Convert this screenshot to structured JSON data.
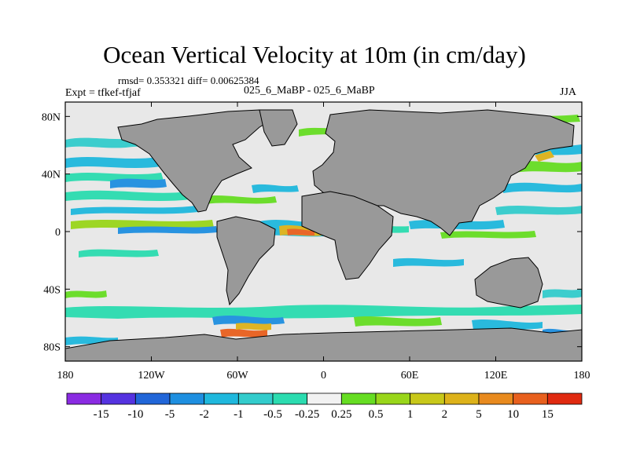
{
  "plot": {
    "title": "Ocean Vertical Velocity at 10m (in cm/day)",
    "stats": "rmsd= 0.353321 diff= 0.00625384",
    "experiment": "Expt = tfkef-tfjaf",
    "runs": "025_6_MaBP - 025_6_MaBP",
    "season": "JJA"
  },
  "axes": {
    "x_ticks": [
      "180",
      "120W",
      "60W",
      "0",
      "60E",
      "120E",
      "180"
    ],
    "y_ticks": [
      "80N",
      "40N",
      "0",
      "40S",
      "80S"
    ]
  },
  "colorbar": {
    "labels": [
      "-15",
      "-10",
      "-5",
      "-2",
      "-1",
      "-0.5",
      "-0.25",
      "0.25",
      "0.5",
      "1",
      "2",
      "5",
      "10",
      "15"
    ],
    "colors": [
      "#8a2be2",
      "#5533e0",
      "#2166d8",
      "#1e8fe0",
      "#1fb8dd",
      "#33cccc",
      "#2bdcb0",
      "#f2f2f2",
      "#66dd22",
      "#99d61a",
      "#c8c81a",
      "#ddb21a",
      "#e88a1e",
      "#e8601e",
      "#e02a10"
    ]
  },
  "colors": {
    "land": "#999999",
    "ocean_background": "#e8e8e8"
  }
}
